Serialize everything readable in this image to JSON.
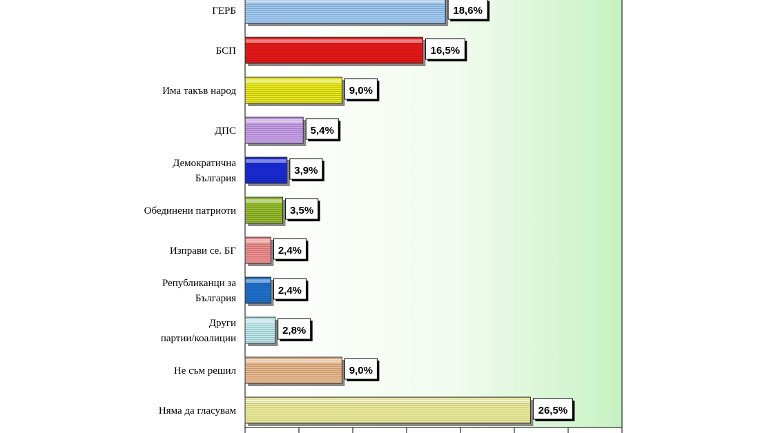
{
  "chart_data": {
    "type": "bar",
    "orientation": "horizontal",
    "categories": [
      [
        "ГЕРБ"
      ],
      [
        "БСП"
      ],
      [
        "Има такъв народ"
      ],
      [
        "ДПС"
      ],
      [
        "Демократична",
        "България"
      ],
      [
        "Обединени патриоти"
      ],
      [
        "Изправи се. БГ"
      ],
      [
        "Републиканци за",
        "България"
      ],
      [
        "Други",
        "партии/коалиции"
      ],
      [
        "Не съм решил"
      ],
      [
        "Няма да гласувам"
      ]
    ],
    "values": [
      18.6,
      16.5,
      9.0,
      5.4,
      3.9,
      3.5,
      2.4,
      2.4,
      2.8,
      9.0,
      26.5
    ],
    "value_labels": [
      "18,6%",
      "16,5%",
      "9,0%",
      "5,4%",
      "3,9%",
      "3,5%",
      "2,4%",
      "2,4%",
      "2,8%",
      "9,0%",
      "26,5%"
    ],
    "bar_colors": [
      "#9fc8f2",
      "#e41818",
      "#e8e81c",
      "#c79ee8",
      "#1a2bd4",
      "#93ba2c",
      "#f08e8e",
      "#1f6fc9",
      "#bde8ec",
      "#e9b98c",
      "#eaea9a"
    ],
    "xlim": [
      0,
      35
    ],
    "grid": false,
    "legend": "none",
    "plot_background": "light green gradient"
  }
}
